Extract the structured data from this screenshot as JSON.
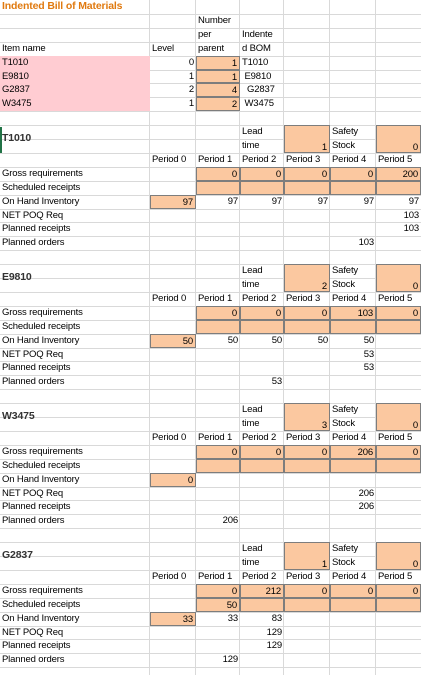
{
  "bom": {
    "title": "Indented Bill of Materials",
    "hdr_item": "Item name",
    "hdr_level": "Level",
    "hdr_num1": "Number",
    "hdr_num2": "per",
    "hdr_num3": "parent",
    "hdr_ind1": "Indente",
    "hdr_ind2": "d BOM",
    "rows": [
      {
        "item": "T1010",
        "level": "0",
        "qty": "1",
        "indented": "T1010"
      },
      {
        "item": "E9810",
        "level": "1",
        "qty": "1",
        "indented": " E9810"
      },
      {
        "item": "G2837",
        "level": "2",
        "qty": "4",
        "indented": "  G2837"
      },
      {
        "item": "W3475",
        "level": "1",
        "qty": "2",
        "indented": " W3475"
      }
    ]
  },
  "labels": {
    "lead1": "Lead",
    "lead2": "time",
    "ss1": "Safety",
    "ss2": "Stock",
    "periods": [
      "Period 0",
      "Period 1",
      "Period 2",
      "Period 3",
      "Period 4",
      "Period 5"
    ],
    "rows": [
      "Gross requirements",
      "Scheduled receipts",
      "On Hand Inventory",
      "NET POQ Req",
      "Planned receipts",
      "Planned orders"
    ]
  },
  "sections": [
    {
      "name": "T1010",
      "lead": "1",
      "safety": "0",
      "gross": [
        "",
        "0",
        "0",
        "0",
        "0",
        "200"
      ],
      "sched": [
        "",
        "",
        "",
        "",
        "",
        ""
      ],
      "onhand": [
        "97",
        "97",
        "97",
        "97",
        "97",
        "97"
      ],
      "net": [
        "",
        "",
        "",
        "",
        "",
        "103"
      ],
      "prec": [
        "",
        "",
        "",
        "",
        "",
        "103"
      ],
      "porder": [
        "",
        "",
        "",
        "",
        "103",
        ""
      ]
    },
    {
      "name": "E9810",
      "lead": "2",
      "safety": "0",
      "gross": [
        "",
        "0",
        "0",
        "0",
        "103",
        "0"
      ],
      "sched": [
        "",
        "",
        "",
        "",
        "",
        ""
      ],
      "onhand": [
        "50",
        "50",
        "50",
        "50",
        "50",
        ""
      ],
      "net": [
        "",
        "",
        "",
        "",
        "53",
        ""
      ],
      "prec": [
        "",
        "",
        "",
        "",
        "53",
        ""
      ],
      "porder": [
        "",
        "",
        "53",
        "",
        "",
        ""
      ]
    },
    {
      "name": "W3475",
      "lead": "3",
      "safety": "0",
      "gross": [
        "",
        "0",
        "0",
        "0",
        "206",
        "0"
      ],
      "sched": [
        "",
        "",
        "",
        "",
        "",
        ""
      ],
      "onhand": [
        "0",
        "",
        "",
        "",
        "",
        ""
      ],
      "net": [
        "",
        "",
        "",
        "",
        "206",
        ""
      ],
      "prec": [
        "",
        "",
        "",
        "",
        "206",
        ""
      ],
      "porder": [
        "",
        "206",
        "",
        "",
        "",
        ""
      ]
    },
    {
      "name": "G2837",
      "lead": "1",
      "safety": "0",
      "gross": [
        "",
        "0",
        "212",
        "0",
        "0",
        "0"
      ],
      "sched": [
        "",
        "50",
        "",
        "",
        "",
        ""
      ],
      "onhand": [
        "33",
        "33",
        "83",
        "",
        "",
        ""
      ],
      "net": [
        "",
        "",
        "129",
        "",
        "",
        ""
      ],
      "prec": [
        "",
        "",
        "129",
        "",
        "",
        ""
      ],
      "porder": [
        "",
        "129",
        "",
        "",
        "",
        ""
      ]
    }
  ]
}
